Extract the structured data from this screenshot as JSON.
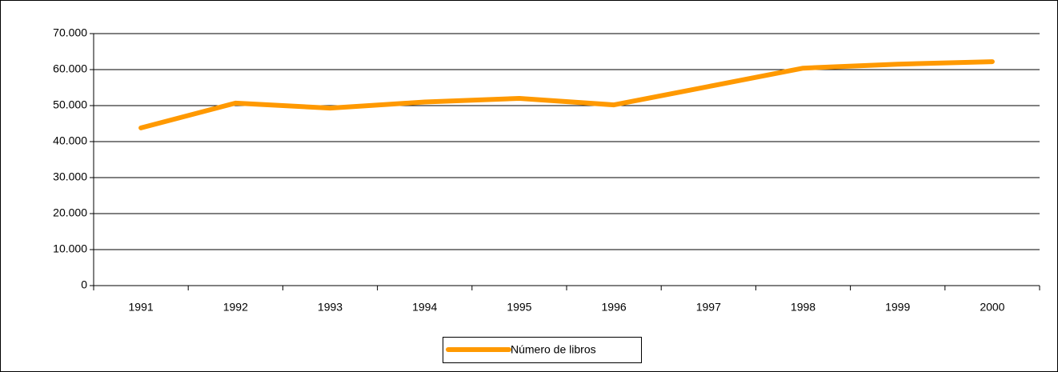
{
  "chart_data": {
    "type": "line",
    "categories": [
      "1991",
      "1992",
      "1993",
      "1994",
      "1995",
      "1996",
      "1997",
      "1998",
      "1999",
      "2000"
    ],
    "series": [
      {
        "name": "Número de libros",
        "color": "#ff9900",
        "values": [
          43800,
          50700,
          49300,
          51000,
          52000,
          50200,
          55300,
          60400,
          61500,
          62200
        ]
      }
    ],
    "ylim": [
      0,
      70000
    ],
    "yticks": [
      0,
      {
        "value": 10000,
        "label": "10.000"
      },
      {
        "value": 20000,
        "label": "20.000"
      },
      {
        "value": 30000,
        "label": "30.000"
      },
      {
        "value": 40000,
        "label": "40.000"
      },
      {
        "value": 50000,
        "label": "50.000"
      },
      {
        "value": 60000,
        "label": "60.000"
      },
      {
        "value": 70000,
        "label": "70.000"
      }
    ],
    "grid": true,
    "legend": "bottom"
  }
}
